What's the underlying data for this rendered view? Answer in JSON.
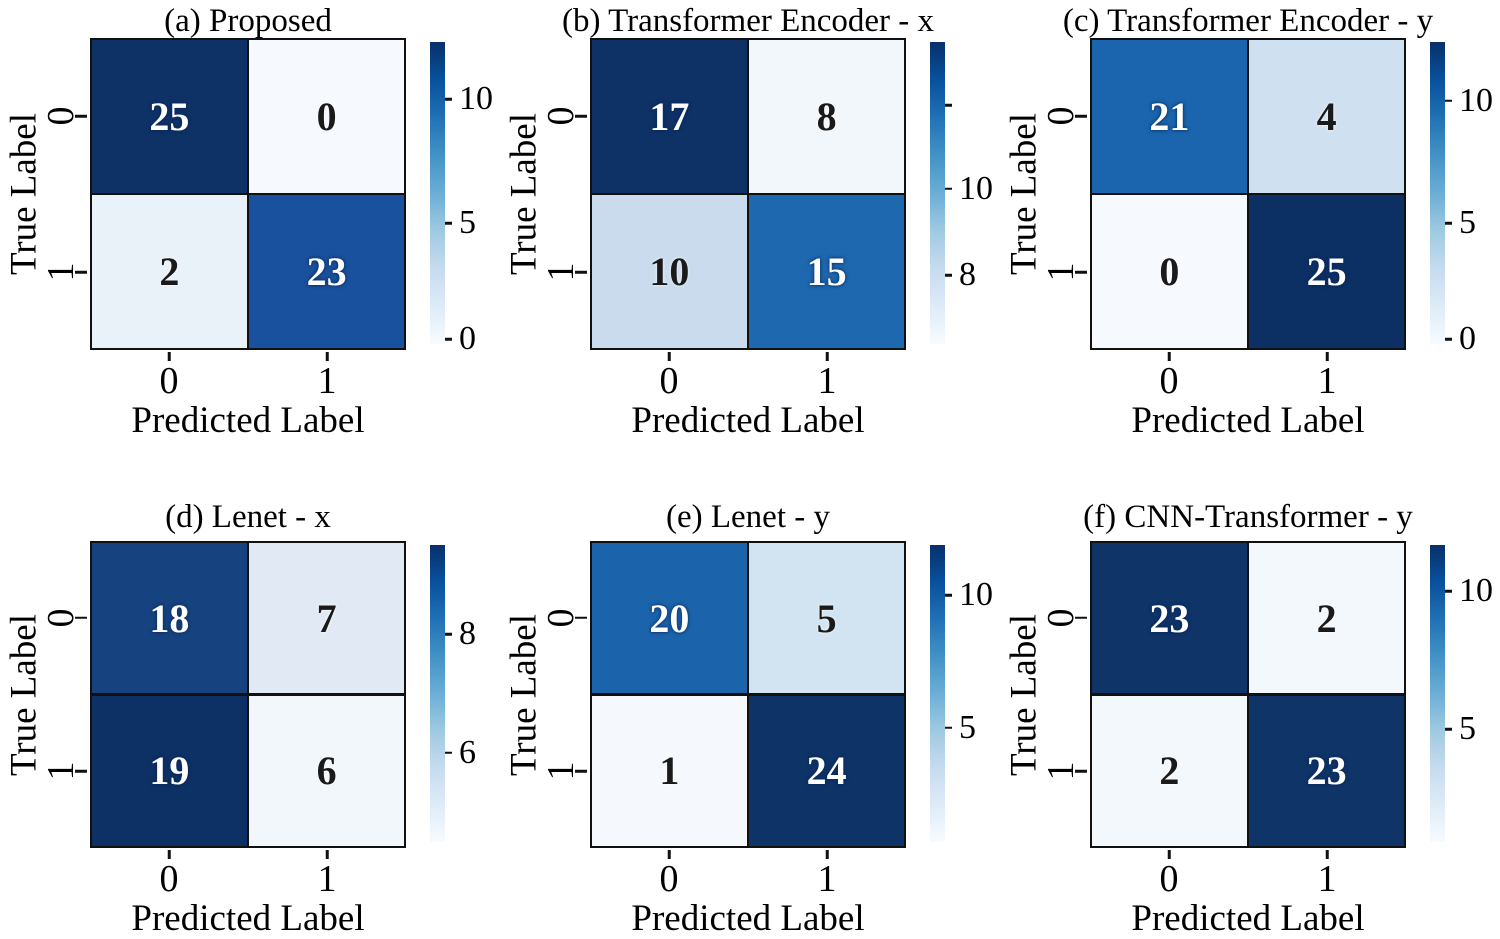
{
  "colors": {
    "background": "#ffffff",
    "grid_line": "#111111",
    "text": "#000000",
    "cmap_dark": "#08306b",
    "cmap_light": "#f7fbff"
  },
  "colorbar_gradient": [
    "#f7fbff",
    "#deebf7",
    "#c6dbef",
    "#9ecae1",
    "#6baed6",
    "#4292c6",
    "#2171b5",
    "#08519c",
    "#08306b"
  ],
  "chart_data": [
    {
      "panel": "a",
      "type": "heatmap",
      "title": "(a) Proposed",
      "xlabel": "Predicted Label",
      "ylabel": "True Label",
      "x_tick_labels": [
        "0",
        "1"
      ],
      "y_tick_labels": [
        "0",
        "1"
      ],
      "matrix": [
        [
          25,
          0
        ],
        [
          2,
          23
        ]
      ],
      "cell_colors": [
        [
          "#0e3166",
          "#f6f9fd"
        ],
        [
          "#e9f1f9",
          "#1a519e"
        ]
      ],
      "cell_text_colors": [
        [
          "#ffffff",
          "#1a1a1a"
        ],
        [
          "#1a1a1a",
          "#ffffff"
        ]
      ],
      "colorbar_ticks": [
        {
          "label": "10",
          "pos": 0.19
        },
        {
          "label": "5",
          "pos": 0.6
        },
        {
          "label": "0",
          "pos": 0.985
        }
      ]
    },
    {
      "panel": "b",
      "type": "heatmap",
      "title": "(b) Transformer Encoder - x",
      "xlabel": "Predicted Label",
      "ylabel": "True Label",
      "x_tick_labels": [
        "0",
        "1"
      ],
      "y_tick_labels": [
        "0",
        "1"
      ],
      "matrix": [
        [
          17,
          8
        ],
        [
          10,
          15
        ]
      ],
      "cell_colors": [
        [
          "#0e3166",
          "#f2f7fc"
        ],
        [
          "#c9dbed",
          "#1e68af"
        ]
      ],
      "cell_text_colors": [
        [
          "#ffffff",
          "#1a1a1a"
        ],
        [
          "#1a1a1a",
          "#ffffff"
        ]
      ],
      "colorbar_ticks": [
        {
          "label": "",
          "pos": 0.21
        },
        {
          "label": "10",
          "pos": 0.486
        },
        {
          "label": "8",
          "pos": 0.772
        }
      ]
    },
    {
      "panel": "c",
      "type": "heatmap",
      "title": "(c) Transformer Encoder - y",
      "xlabel": "Predicted Label",
      "ylabel": "True Label",
      "x_tick_labels": [
        "0",
        "1"
      ],
      "y_tick_labels": [
        "0",
        "1"
      ],
      "matrix": [
        [
          21,
          4
        ],
        [
          0,
          25
        ]
      ],
      "cell_colors": [
        [
          "#1a65ad",
          "#cfe0f0"
        ],
        [
          "#f6f9fd",
          "#0d3064"
        ]
      ],
      "cell_text_colors": [
        [
          "#ffffff",
          "#1a1a1a"
        ],
        [
          "#1a1a1a",
          "#ffffff"
        ]
      ],
      "colorbar_ticks": [
        {
          "label": "10",
          "pos": 0.195
        },
        {
          "label": "5",
          "pos": 0.6
        },
        {
          "label": "0",
          "pos": 0.985
        }
      ]
    },
    {
      "panel": "d",
      "type": "heatmap",
      "title": "(d) Lenet - x",
      "xlabel": "Predicted Label",
      "ylabel": "True Label",
      "x_tick_labels": [
        "0",
        "1"
      ],
      "y_tick_labels": [
        "0",
        "1"
      ],
      "matrix": [
        [
          18,
          7
        ],
        [
          19,
          6
        ]
      ],
      "cell_colors": [
        [
          "#164380",
          "#e1eaf4"
        ],
        [
          "#0d3065",
          "#f2f7fc"
        ]
      ],
      "cell_text_colors": [
        [
          "#ffffff",
          "#1a1a1a"
        ],
        [
          "#ffffff",
          "#1a1a1a"
        ]
      ],
      "colorbar_ticks": [
        {
          "label": "8",
          "pos": 0.3
        },
        {
          "label": "6",
          "pos": 0.7
        }
      ]
    },
    {
      "panel": "e",
      "type": "heatmap",
      "title": "(e) Lenet - y",
      "xlabel": "Predicted Label",
      "ylabel": "True Label",
      "x_tick_labels": [
        "0",
        "1"
      ],
      "y_tick_labels": [
        "0",
        "1"
      ],
      "matrix": [
        [
          20,
          5
        ],
        [
          1,
          24
        ]
      ],
      "cell_colors": [
        [
          "#1b64ac",
          "#d2e3f1"
        ],
        [
          "#f5f9fd",
          "#0e3467"
        ]
      ],
      "cell_text_colors": [
        [
          "#ffffff",
          "#1a1a1a"
        ],
        [
          "#1a1a1a",
          "#ffffff"
        ]
      ],
      "colorbar_ticks": [
        {
          "label": "10",
          "pos": 0.17
        },
        {
          "label": "5",
          "pos": 0.615
        }
      ]
    },
    {
      "panel": "f",
      "type": "heatmap",
      "title": "(f) CNN-Transformer - y",
      "xlabel": "Predicted Label",
      "ylabel": "True Label",
      "x_tick_labels": [
        "0",
        "1"
      ],
      "y_tick_labels": [
        "0",
        "1"
      ],
      "matrix": [
        [
          23,
          2
        ],
        [
          2,
          23
        ]
      ],
      "cell_colors": [
        [
          "#0f3468",
          "#f3f8fd"
        ],
        [
          "#f3f8fd",
          "#0f3468"
        ]
      ],
      "cell_text_colors": [
        [
          "#ffffff",
          "#1a1a1a"
        ],
        [
          "#1a1a1a",
          "#ffffff"
        ]
      ],
      "colorbar_ticks": [
        {
          "label": "10",
          "pos": 0.155
        },
        {
          "label": "5",
          "pos": 0.62
        }
      ]
    }
  ]
}
